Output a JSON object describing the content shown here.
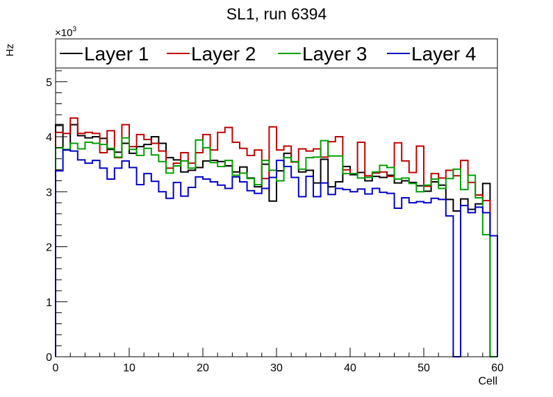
{
  "chart_data": {
    "type": "line",
    "title": "SL1, run 6394",
    "xlabel": "Cell",
    "ylabel": "Hz",
    "y_multiplier": "×10",
    "y_multiplier_exp": "3",
    "xlim": [
      0,
      60
    ],
    "ylim": [
      0,
      5250
    ],
    "x_ticks": [
      0,
      10,
      20,
      30,
      40,
      50,
      60
    ],
    "y_ticks": [
      0,
      1,
      2,
      3,
      4,
      5
    ],
    "y_tick_scale": 1000,
    "legend_position": "top",
    "series": [
      {
        "name": "Layer 1",
        "color": "#000000",
        "values": [
          4220,
          3760,
          4220,
          4020,
          3980,
          4000,
          3970,
          3770,
          3720,
          3880,
          3700,
          3820,
          3860,
          4000,
          3880,
          3620,
          3580,
          3360,
          3390,
          3440,
          3560,
          3570,
          3550,
          3470,
          3360,
          3450,
          3250,
          3090,
          3500,
          2830,
          3380,
          3700,
          3540,
          3360,
          3390,
          3160,
          3590,
          3090,
          3180,
          3460,
          3310,
          3350,
          3200,
          3280,
          3260,
          3300,
          3160,
          3200,
          3170,
          3110,
          3010,
          3180,
          3120,
          2860,
          2650,
          2870,
          2680,
          2780,
          3150,
          0
        ]
      },
      {
        "name": "Layer 2",
        "color": "#c00000",
        "values": [
          4080,
          4060,
          4340,
          4060,
          4080,
          4060,
          3710,
          4110,
          3620,
          4220,
          3820,
          4040,
          3950,
          3880,
          3740,
          3430,
          3520,
          3710,
          3520,
          3710,
          4040,
          3760,
          4080,
          4170,
          3900,
          3790,
          3660,
          3760,
          3240,
          4180,
          3760,
          3830,
          3540,
          3780,
          3740,
          3780,
          3630,
          3910,
          4000,
          3400,
          3330,
          3900,
          3290,
          3340,
          3360,
          3280,
          3890,
          3560,
          3350,
          3830,
          3100,
          3330,
          3250,
          3390,
          3290,
          3570,
          3170,
          2940,
          2840,
          0
        ]
      },
      {
        "name": "Layer 3",
        "color": "#00a000",
        "values": [
          3800,
          3770,
          3880,
          3780,
          3900,
          3880,
          3860,
          3790,
          3630,
          3980,
          3770,
          3660,
          3790,
          3670,
          3550,
          3340,
          3470,
          3560,
          3430,
          3940,
          3800,
          3530,
          3460,
          3570,
          3300,
          3340,
          3240,
          3130,
          3570,
          3390,
          3200,
          3620,
          3550,
          3410,
          3620,
          3630,
          3930,
          3650,
          3650,
          3330,
          3330,
          3250,
          3260,
          3360,
          3480,
          3440,
          3230,
          3250,
          3150,
          3000,
          3120,
          3230,
          3060,
          3240,
          3410,
          3040,
          3300,
          2890,
          2220,
          0
        ]
      },
      {
        "name": "Layer 4",
        "color": "#0000c8",
        "values": [
          3380,
          3760,
          3740,
          3580,
          3520,
          3570,
          3430,
          3230,
          3430,
          3560,
          3440,
          3130,
          3330,
          3190,
          3000,
          2880,
          3170,
          2920,
          3080,
          3270,
          3230,
          3180,
          3120,
          3060,
          3270,
          3180,
          3020,
          2970,
          3060,
          3260,
          3570,
          3460,
          3260,
          2910,
          3280,
          2910,
          3160,
          2950,
          3060,
          3040,
          3000,
          3050,
          2960,
          3060,
          2990,
          2970,
          2700,
          2890,
          2800,
          2820,
          2800,
          2880,
          2860,
          2560,
          0,
          2750,
          2620,
          2720,
          2620,
          2200
        ]
      }
    ]
  }
}
